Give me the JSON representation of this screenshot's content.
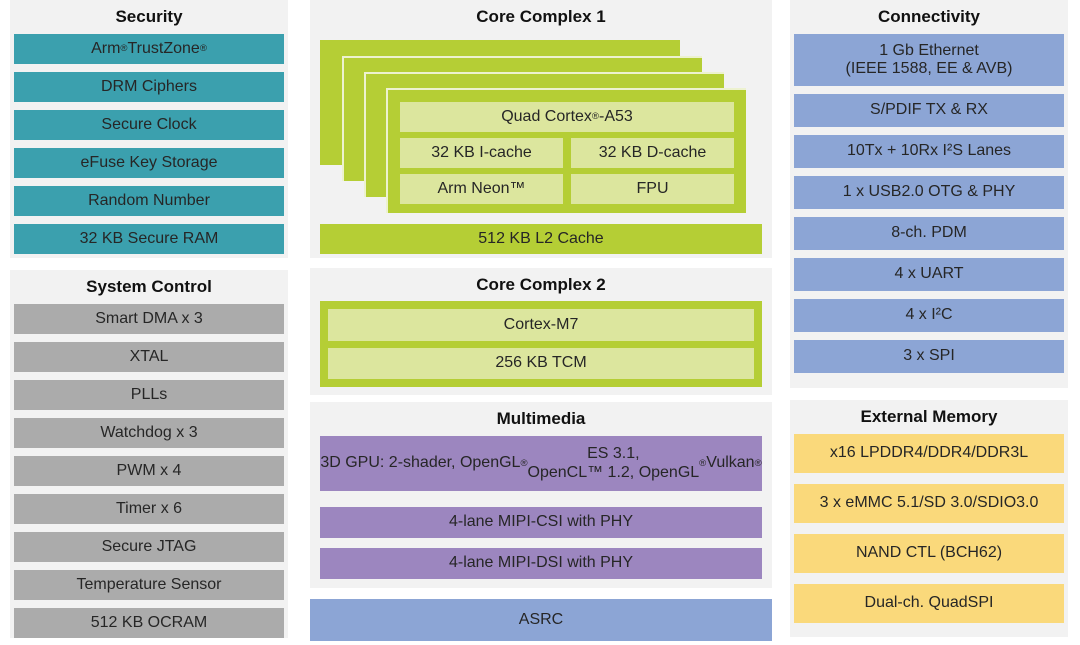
{
  "colors": {
    "panel_bg": "#F2F2F2",
    "security_teal": "#3BA0AE",
    "system_gray": "#ABABAB",
    "core_lime": "#B5CE35",
    "core_lime_light": "#DCE69E",
    "multimedia_purple": "#9C86BF",
    "connectivity_blue": "#8CA5D5",
    "memory_yellow": "#FAD97B",
    "text_dark": "#262626"
  },
  "sections": {
    "security": {
      "title": "Security",
      "items": [
        "Arm® TrustZone®",
        "DRM Ciphers",
        "Secure Clock",
        "eFuse Key Storage",
        "Random Number",
        "32 KB Secure RAM"
      ]
    },
    "system_control": {
      "title": "System Control",
      "items": [
        "Smart DMA x 3",
        "XTAL",
        "PLLs",
        "Watchdog x 3",
        "PWM x 4",
        "Timer x 6",
        "Secure JTAG",
        "Temperature Sensor",
        "512 KB OCRAM"
      ]
    },
    "core_complex_1": {
      "title": "Core Complex 1",
      "cpu": "Quad Cortex®-A53",
      "icache": "32 KB I-cache",
      "dcache": "32 KB D-cache",
      "neon": "Arm Neon™",
      "fpu": "FPU",
      "l2": "512 KB L2 Cache"
    },
    "core_complex_2": {
      "title": "Core Complex 2",
      "items": [
        "Cortex-M7",
        "256 KB TCM"
      ]
    },
    "multimedia": {
      "title": "Multimedia",
      "items": [
        "3D GPU: 2-shader, OpenGL® ES 3.1,\nOpenCL™ 1.2, OpenGL® Vulkan®",
        "4-lane MIPI-CSI with PHY",
        "4-lane MIPI-DSI with PHY"
      ]
    },
    "asrc": {
      "label": "ASRC"
    },
    "connectivity": {
      "title": "Connectivity",
      "items": [
        "1 Gb Ethernet\n(IEEE 1588, EE & AVB)",
        "S/PDIF TX & RX",
        "10Tx + 10Rx I²S Lanes",
        "1 x USB2.0 OTG & PHY",
        "8-ch. PDM",
        "4 x UART",
        "4 x I²C",
        "3 x SPI"
      ]
    },
    "external_memory": {
      "title": "External Memory",
      "items": [
        "x16 LPDDR4/DDR4/DDR3L",
        "3 x eMMC 5.1/SD 3.0/SDIO3.0",
        "NAND CTL (BCH62)",
        "Dual-ch. QuadSPI"
      ]
    }
  }
}
